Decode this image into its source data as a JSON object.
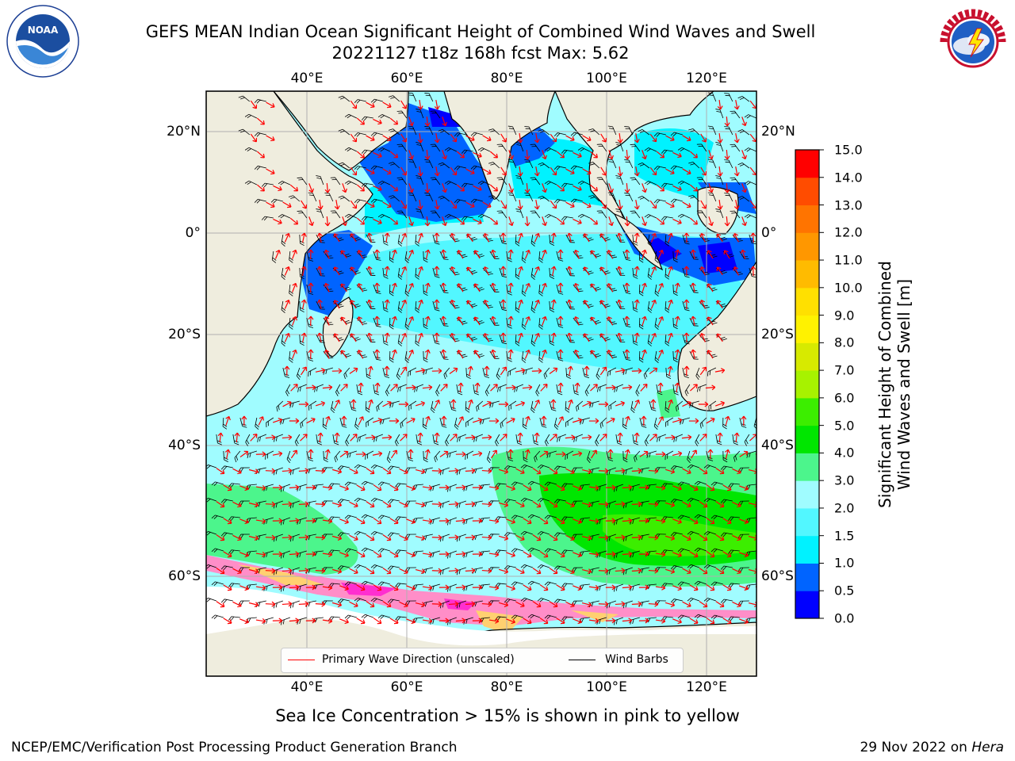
{
  "header": {
    "title_line1": "GEFS MEAN Indian Ocean Significant Height of Combined Wind Waves and Swell",
    "title_line2": "20221127 t18z 168h fcst   Max: 5.62"
  },
  "logos": {
    "left": {
      "name": "noaa-logo",
      "text": "NOAA",
      "ring_text": "NATIONAL OCEANIC AND ATMOSPHERIC ADMINISTRATION · U.S. DEPARTMENT OF COMMERCE"
    },
    "right": {
      "name": "nws-logo",
      "ring_text": "NATIONAL WEATHER SERVICE"
    }
  },
  "map": {
    "lon_ticks_top": [
      "40°E",
      "60°E",
      "80°E",
      "100°E",
      "120°E"
    ],
    "lon_ticks_bottom": [
      "40°E",
      "60°E",
      "80°E",
      "100°E",
      "120°E"
    ],
    "lat_ticks_left": [
      "20°N",
      "0°",
      "20°S",
      "40°S",
      "60°S"
    ],
    "lat_ticks_right": [
      "20°N",
      "0°",
      "20°S",
      "40°S",
      "60°S"
    ],
    "extent": {
      "lon_min": 20,
      "lon_max": 130,
      "lat_min": -75,
      "lat_max": 28
    },
    "colors": {
      "land": "#efedde",
      "coast": "#000000",
      "grid": "#b0b0b0",
      "wave_arrow": "#ff0000",
      "wind_barb": "#000000"
    },
    "legend": {
      "wave_label": "Primary Wave Direction (unscaled)",
      "wind_label": "Wind Barbs"
    }
  },
  "colorbar": {
    "label_line1": "Significant Height of Combined",
    "label_line2": "Wind Waves and Swell [m]",
    "ticks": [
      "0.0",
      "0.5",
      "1.0",
      "1.5",
      "2.0",
      "3.0",
      "4.0",
      "5.0",
      "6.0",
      "7.0",
      "8.0",
      "9.0",
      "10.0",
      "11.0",
      "12.0",
      "13.0",
      "14.0",
      "15.0"
    ],
    "colors": [
      "#0000ff",
      "#0064ff",
      "#00f2ff",
      "#52f7ff",
      "#a0fcff",
      "#4cf58c",
      "#00e600",
      "#3cee00",
      "#a7f200",
      "#d7ea00",
      "#fff200",
      "#ffe000",
      "#ffbb00",
      "#ff9700",
      "#ff7400",
      "#ff4c00",
      "#ff0000"
    ]
  },
  "note": "Sea Ice Concentration > 15% is shown in pink to yellow",
  "footer": {
    "left": "NCEP/EMC/Verification Post Processing Product Generation Branch",
    "right_date": "29 Nov 2022 on ",
    "right_host": "Hera"
  }
}
